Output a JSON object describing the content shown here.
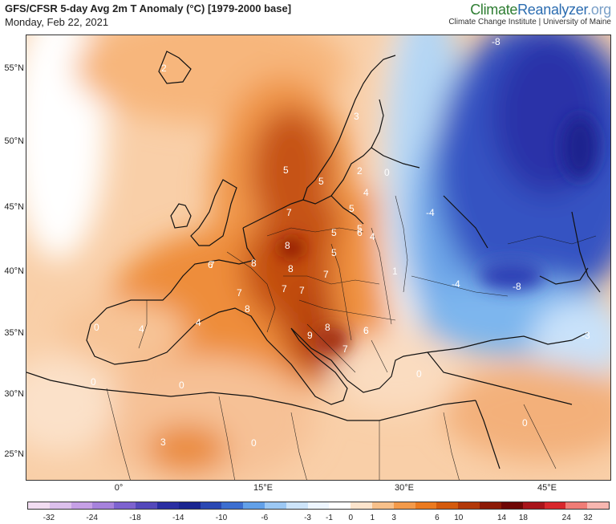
{
  "title": "GFS/CFSR 5-day Avg 2m T Anomaly (°C) [1979-2000 base]",
  "date": "Monday, Feb 22, 2021",
  "brand": {
    "climate": "Climate",
    "reanalyzer": "Reanalyzer",
    "org": ".org",
    "tagline": "Climate Change Institute | University of Maine"
  },
  "lat_labels": [
    "55°N",
    "50°N",
    "45°N",
    "40°N",
    "35°N",
    "30°N",
    "25°N"
  ],
  "lon_labels": [
    "0°",
    "15°E",
    "30°E",
    "45°E"
  ],
  "colorbar": {
    "colors": [
      "#f2ddf2",
      "#dcc0ec",
      "#c6a0e6",
      "#a682dc",
      "#7d62cf",
      "#5448bb",
      "#2a2ea2",
      "#1a2590",
      "#2a48b3",
      "#3c6ed0",
      "#62a0e8",
      "#9cc8f4",
      "#cde4fa",
      "#eef6ff",
      "#ffffff",
      "#fde4cc",
      "#f7c08a",
      "#f39a4a",
      "#eb7a1f",
      "#d45a0c",
      "#b23808",
      "#8c1a06",
      "#6e0705",
      "#a8141a",
      "#d8272c",
      "#f07c76",
      "#f7b6b0"
    ],
    "labels": [
      "-32",
      "-24",
      "-18",
      "-14",
      "-10",
      "-6",
      "-3",
      "-1",
      "0",
      "1",
      "3",
      "6",
      "10",
      "14",
      "18",
      "24",
      "32"
    ]
  },
  "anomaly_labels": [
    "2",
    "5",
    "5",
    "7",
    "8",
    "6",
    "8",
    "7",
    "8",
    "7",
    "5",
    "7",
    "7",
    "8",
    "7",
    "8",
    "9",
    "6",
    "7",
    "4",
    "4",
    "0",
    "0",
    "3",
    "0",
    "0",
    "5",
    "5",
    "4",
    "4",
    "5",
    "1",
    "6",
    "6",
    "2",
    "0",
    "3",
    "0",
    "-8",
    "-8",
    "-4",
    "-4",
    "-3",
    "0"
  ]
}
